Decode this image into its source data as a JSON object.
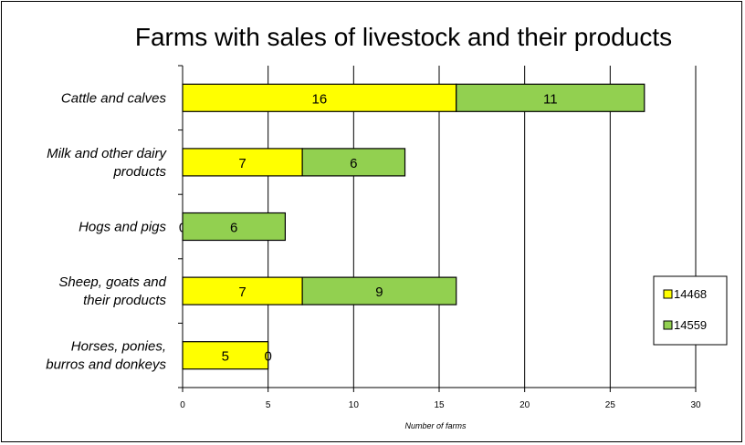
{
  "chart_data": {
    "type": "bar",
    "orientation": "horizontal",
    "stacked": true,
    "title": "Farms with sales of livestock and their products",
    "xlabel": "Number of farms",
    "ylabel": "",
    "xlim": [
      0,
      30
    ],
    "xticks": [
      0,
      5,
      10,
      15,
      20,
      25,
      30
    ],
    "grid": true,
    "legend_position": "right",
    "categories": [
      [
        "Cattle and  calves"
      ],
      [
        "Milk and other dairy",
        "products"
      ],
      [
        "Hogs and pigs"
      ],
      [
        "Sheep, goats and",
        "their products"
      ],
      [
        "Horses, ponies,",
        "burros and donkeys"
      ]
    ],
    "series": [
      {
        "name": "14468",
        "color": "#ffff00",
        "values": [
          16,
          7,
          0,
          7,
          5
        ]
      },
      {
        "name": "14559",
        "color": "#92d050",
        "values": [
          11,
          6,
          6,
          9,
          0
        ]
      }
    ]
  }
}
